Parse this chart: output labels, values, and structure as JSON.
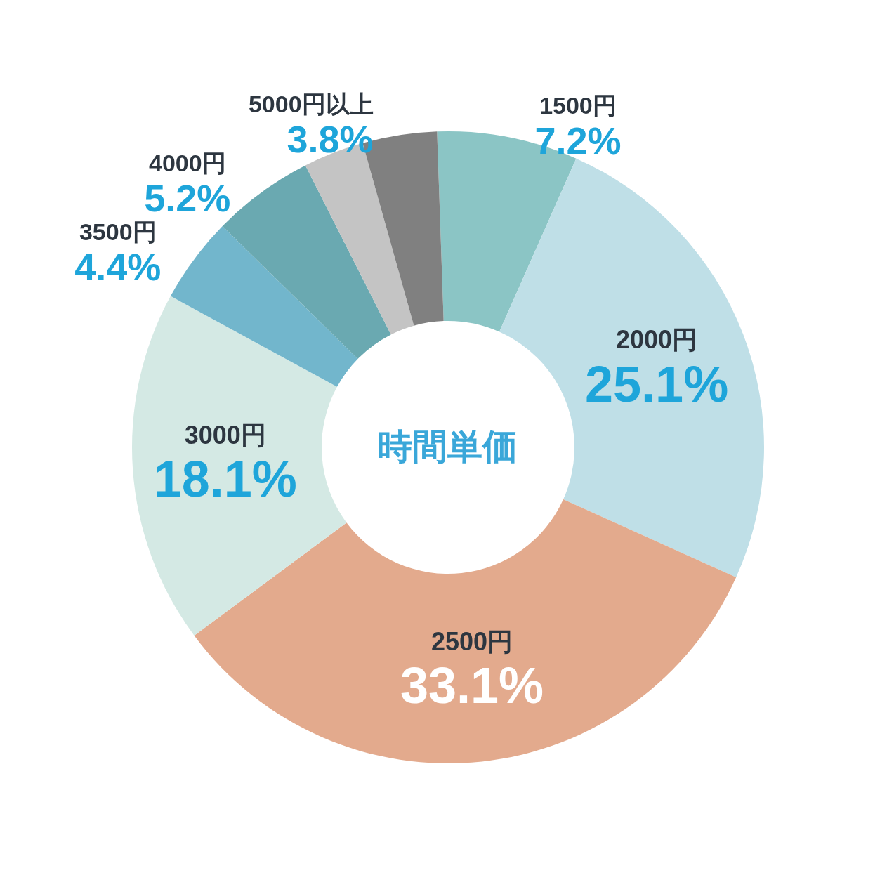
{
  "chart_data": {
    "type": "donut",
    "title": "時間単価",
    "categories": [
      "1500円",
      "2000円",
      "2500円",
      "3000円",
      "3500円",
      "4000円",
      null,
      "5000円以上"
    ],
    "values": [
      7.2,
      25.1,
      33.1,
      18.1,
      4.4,
      5.2,
      3.1,
      3.8
    ],
    "value_labels": [
      "7.2%",
      "25.1%",
      "33.1%",
      "18.1%",
      "4.4%",
      "5.2%",
      null,
      "3.8%"
    ],
    "colors": [
      "#8bc5c5",
      "#bfdfe7",
      "#e3aa8d",
      "#d4e9e4",
      "#72b6cc",
      "#6aa9b1",
      "#c4c4c4",
      "#808080"
    ],
    "legend": false
  }
}
